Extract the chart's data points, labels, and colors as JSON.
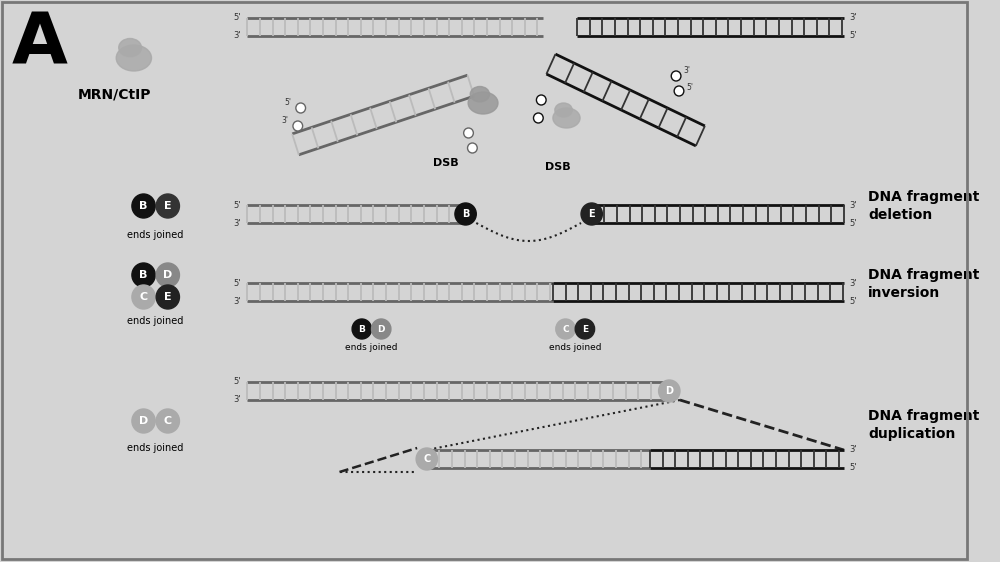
{
  "bg_color": "#d4d4d4",
  "title_letter": "A",
  "label_mrn": "MRN/CtIP",
  "label_dsb": "DSB",
  "label_ends_joined": "ends joined",
  "label_deletion": "DNA fragment\ndeletion",
  "label_inversion": "DNA fragment\ninversion",
  "label_duplication": "DNA fragment\nduplication",
  "rail_light": "#999999",
  "rail_dark": "#111111",
  "rail_mid": "#666666",
  "rung_light": "#bbbbbb",
  "rung_dark": "#333333",
  "rung_mid": "#888888",
  "circle_dark": "#111111",
  "circle_mid": "#888888",
  "circle_light": "#aaaaaa",
  "line_color": "#222222"
}
